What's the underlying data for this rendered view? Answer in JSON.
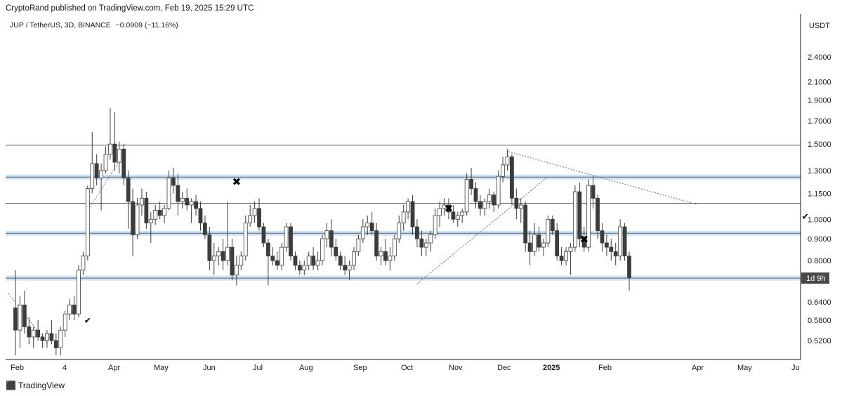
{
  "header": {
    "published": "CryptoRand published on TradingView.com, Feb 19, 2025 15:29 UTC"
  },
  "symbol": {
    "pair": "JUP / TetherUS, 3D, BINANCE",
    "change": "−0.0909 (−11.16%)"
  },
  "footer": {
    "brand": "TradingView"
  },
  "colors": {
    "up_body": "#ffffff",
    "down_body": "#3c3c3c",
    "candle_outline": "#3c3c3c",
    "level_line": "#5f6368",
    "level_band": "#cfe3f7",
    "background": "#ffffff"
  },
  "chart_data": {
    "type": "candlestick",
    "scale": "log",
    "currency_label": "USDT",
    "price_ticks": [
      "2.4000",
      "2.1000",
      "1.9000",
      "1.7000",
      "1.5000",
      "1.3000",
      "1.1500",
      "1.0000",
      "0.9000",
      "0.8000",
      "0.6400",
      "0.5800",
      "0.5200"
    ],
    "x_ticks": [
      "Feb",
      "4",
      "Apr",
      "May",
      "Jun",
      "Jul",
      "Aug",
      "Sep",
      "Oct",
      "Nov",
      "Dec",
      "2025",
      "Feb",
      "Apr",
      "May",
      "Ju"
    ],
    "countdown_label": "1d 9h",
    "countdown_price": 0.728,
    "horizontal_levels": [
      1.49,
      1.255,
      1.09,
      0.927,
      0.728
    ],
    "shaded_levels": [
      1.255,
      0.927,
      0.728
    ],
    "markers": [
      {
        "type": "check",
        "date_index": 16,
        "price": 0.57
      },
      {
        "type": "cross",
        "date_index": 49,
        "price": 1.2
      },
      {
        "type": "cross",
        "date_index": 96,
        "price": 1.04
      },
      {
        "type": "cross",
        "date_index": 126,
        "price": 0.88
      },
      {
        "type": "check",
        "date_index": 175,
        "price": 1.0
      },
      {
        "type": "cross",
        "date_index": 227,
        "price": 1.06
      }
    ],
    "candles": [
      [
        0.62,
        0.76,
        0.48,
        0.55
      ],
      [
        0.55,
        0.66,
        0.5,
        0.63
      ],
      [
        0.63,
        0.68,
        0.54,
        0.56
      ],
      [
        0.56,
        0.59,
        0.51,
        0.53
      ],
      [
        0.53,
        0.56,
        0.5,
        0.55
      ],
      [
        0.55,
        0.58,
        0.52,
        0.53
      ],
      [
        0.53,
        0.54,
        0.5,
        0.52
      ],
      [
        0.52,
        0.55,
        0.5,
        0.54
      ],
      [
        0.54,
        0.58,
        0.51,
        0.52
      ],
      [
        0.52,
        0.54,
        0.48,
        0.5
      ],
      [
        0.5,
        0.56,
        0.48,
        0.55
      ],
      [
        0.55,
        0.61,
        0.53,
        0.6
      ],
      [
        0.6,
        0.65,
        0.58,
        0.63
      ],
      [
        0.63,
        0.66,
        0.58,
        0.6
      ],
      [
        0.6,
        0.78,
        0.59,
        0.76
      ],
      [
        0.76,
        0.84,
        0.74,
        0.82
      ],
      [
        0.82,
        1.2,
        0.8,
        1.18
      ],
      [
        1.18,
        1.6,
        1.15,
        1.35
      ],
      [
        1.35,
        1.42,
        1.2,
        1.25
      ],
      [
        1.25,
        1.35,
        1.05,
        1.3
      ],
      [
        1.3,
        1.48,
        1.28,
        1.42
      ],
      [
        1.42,
        1.82,
        1.38,
        1.5
      ],
      [
        1.5,
        1.78,
        1.3,
        1.36
      ],
      [
        1.36,
        1.52,
        1.28,
        1.46
      ],
      [
        1.46,
        1.5,
        1.2,
        1.25
      ],
      [
        1.25,
        1.3,
        0.95,
        1.1
      ],
      [
        1.1,
        1.18,
        0.82,
        0.92
      ],
      [
        0.92,
        1.12,
        0.9,
        1.08
      ],
      [
        1.08,
        1.18,
        1.02,
        1.12
      ],
      [
        1.12,
        1.16,
        0.95,
        0.98
      ],
      [
        0.98,
        1.04,
        0.88,
        1.0
      ],
      [
        1.0,
        1.08,
        0.97,
        1.05
      ],
      [
        1.05,
        1.1,
        1.0,
        1.02
      ],
      [
        1.02,
        1.08,
        0.98,
        1.06
      ],
      [
        1.06,
        1.3,
        1.05,
        1.25
      ],
      [
        1.25,
        1.32,
        1.15,
        1.2
      ],
      [
        1.2,
        1.28,
        1.02,
        1.1
      ],
      [
        1.1,
        1.16,
        1.06,
        1.12
      ],
      [
        1.12,
        1.18,
        1.05,
        1.08
      ],
      [
        1.08,
        1.12,
        0.98,
        1.1
      ],
      [
        1.1,
        1.14,
        1.02,
        1.06
      ],
      [
        1.06,
        1.1,
        0.94,
        0.98
      ],
      [
        0.98,
        1.02,
        0.9,
        0.92
      ],
      [
        0.92,
        0.96,
        0.76,
        0.8
      ],
      [
        0.8,
        0.88,
        0.74,
        0.82
      ],
      [
        0.82,
        0.86,
        0.78,
        0.84
      ],
      [
        0.84,
        0.9,
        0.76,
        0.8
      ],
      [
        0.8,
        1.1,
        0.78,
        0.86
      ],
      [
        0.86,
        0.9,
        0.72,
        0.74
      ],
      [
        0.74,
        0.82,
        0.7,
        0.78
      ],
      [
        0.78,
        0.84,
        0.76,
        0.82
      ],
      [
        0.82,
        1.02,
        0.8,
        0.98
      ],
      [
        0.98,
        1.08,
        0.96,
        1.02
      ],
      [
        1.02,
        1.1,
        0.98,
        1.06
      ],
      [
        1.06,
        1.12,
        0.94,
        0.96
      ],
      [
        0.96,
        0.98,
        0.86,
        0.88
      ],
      [
        0.88,
        0.9,
        0.7,
        0.82
      ],
      [
        0.82,
        0.86,
        0.78,
        0.8
      ],
      [
        0.8,
        0.84,
        0.76,
        0.78
      ],
      [
        0.78,
        0.88,
        0.76,
        0.86
      ],
      [
        0.86,
        0.98,
        0.84,
        0.96
      ],
      [
        0.96,
        0.98,
        0.8,
        0.82
      ],
      [
        0.82,
        0.84,
        0.76,
        0.78
      ],
      [
        0.78,
        0.8,
        0.74,
        0.76
      ],
      [
        0.76,
        0.8,
        0.74,
        0.78
      ],
      [
        0.78,
        0.84,
        0.76,
        0.82
      ],
      [
        0.82,
        0.86,
        0.76,
        0.78
      ],
      [
        0.78,
        0.84,
        0.76,
        0.8
      ],
      [
        0.8,
        0.92,
        0.78,
        0.9
      ],
      [
        0.9,
        0.98,
        0.86,
        0.94
      ],
      [
        0.94,
        1.0,
        0.82,
        0.86
      ],
      [
        0.86,
        0.9,
        0.8,
        0.82
      ],
      [
        0.82,
        0.84,
        0.76,
        0.78
      ],
      [
        0.78,
        0.82,
        0.74,
        0.76
      ],
      [
        0.76,
        0.8,
        0.72,
        0.78
      ],
      [
        0.78,
        0.86,
        0.76,
        0.84
      ],
      [
        0.84,
        0.92,
        0.82,
        0.9
      ],
      [
        0.9,
        1.0,
        0.88,
        0.96
      ],
      [
        0.96,
        1.02,
        0.92,
        0.98
      ],
      [
        0.98,
        1.04,
        0.92,
        0.94
      ],
      [
        0.94,
        0.98,
        0.8,
        0.82
      ],
      [
        0.82,
        0.86,
        0.78,
        0.84
      ],
      [
        0.84,
        0.9,
        0.78,
        0.8
      ],
      [
        0.8,
        0.86,
        0.76,
        0.82
      ],
      [
        0.82,
        0.92,
        0.8,
        0.9
      ],
      [
        0.9,
        1.02,
        0.88,
        0.98
      ],
      [
        0.98,
        1.08,
        0.94,
        1.04
      ],
      [
        1.04,
        1.12,
        1.0,
        1.1
      ],
      [
        1.1,
        1.14,
        0.92,
        0.96
      ],
      [
        0.96,
        1.0,
        0.86,
        0.9
      ],
      [
        0.9,
        0.94,
        0.82,
        0.86
      ],
      [
        0.86,
        0.9,
        0.82,
        0.88
      ],
      [
        0.88,
        0.94,
        0.84,
        0.92
      ],
      [
        0.92,
        1.06,
        0.9,
        1.02
      ],
      [
        1.02,
        1.1,
        0.96,
        1.06
      ],
      [
        1.06,
        1.12,
        1.02,
        1.08
      ],
      [
        1.08,
        1.12,
        1.0,
        1.04
      ],
      [
        1.04,
        1.08,
        0.98,
        1.0
      ],
      [
        1.0,
        1.04,
        0.96,
        1.02
      ],
      [
        1.02,
        1.06,
        0.98,
        1.04
      ],
      [
        1.04,
        1.28,
        1.02,
        1.24
      ],
      [
        1.24,
        1.32,
        1.14,
        1.18
      ],
      [
        1.18,
        1.22,
        1.06,
        1.1
      ],
      [
        1.1,
        1.14,
        1.02,
        1.06
      ],
      [
        1.06,
        1.12,
        1.02,
        1.1
      ],
      [
        1.1,
        1.18,
        1.06,
        1.14
      ],
      [
        1.14,
        1.16,
        1.04,
        1.08
      ],
      [
        1.08,
        1.3,
        1.06,
        1.26
      ],
      [
        1.26,
        1.4,
        1.22,
        1.34
      ],
      [
        1.34,
        1.46,
        1.3,
        1.4
      ],
      [
        1.4,
        1.42,
        1.08,
        1.12
      ],
      [
        1.12,
        1.18,
        1.0,
        1.06
      ],
      [
        1.06,
        1.12,
        0.98,
        1.08
      ],
      [
        1.08,
        1.1,
        0.84,
        0.88
      ],
      [
        0.88,
        0.94,
        0.78,
        0.84
      ],
      [
        0.84,
        0.98,
        0.82,
        0.92
      ],
      [
        0.92,
        0.96,
        0.84,
        0.86
      ],
      [
        0.86,
        0.9,
        0.82,
        0.88
      ],
      [
        0.88,
        1.02,
        0.86,
        1.0
      ],
      [
        1.0,
        1.02,
        0.92,
        0.94
      ],
      [
        0.94,
        0.98,
        0.8,
        0.82
      ],
      [
        0.82,
        0.86,
        0.78,
        0.8
      ],
      [
        0.8,
        0.86,
        0.78,
        0.84
      ],
      [
        0.84,
        0.88,
        0.74,
        0.86
      ],
      [
        0.86,
        1.2,
        0.84,
        1.16
      ],
      [
        1.16,
        1.22,
        0.86,
        0.9
      ],
      [
        0.9,
        0.96,
        0.84,
        0.86
      ],
      [
        0.86,
        1.24,
        0.84,
        1.2
      ],
      [
        1.2,
        1.26,
        1.06,
        1.12
      ],
      [
        1.12,
        1.14,
        0.9,
        0.94
      ],
      [
        0.94,
        0.98,
        0.84,
        0.88
      ],
      [
        0.88,
        0.92,
        0.82,
        0.86
      ],
      [
        0.86,
        0.9,
        0.8,
        0.84
      ],
      [
        0.84,
        0.88,
        0.78,
        0.82
      ],
      [
        0.82,
        1.0,
        0.8,
        0.96
      ],
      [
        0.96,
        0.98,
        0.8,
        0.82
      ],
      [
        0.82,
        0.84,
        0.68,
        0.73
      ]
    ]
  }
}
